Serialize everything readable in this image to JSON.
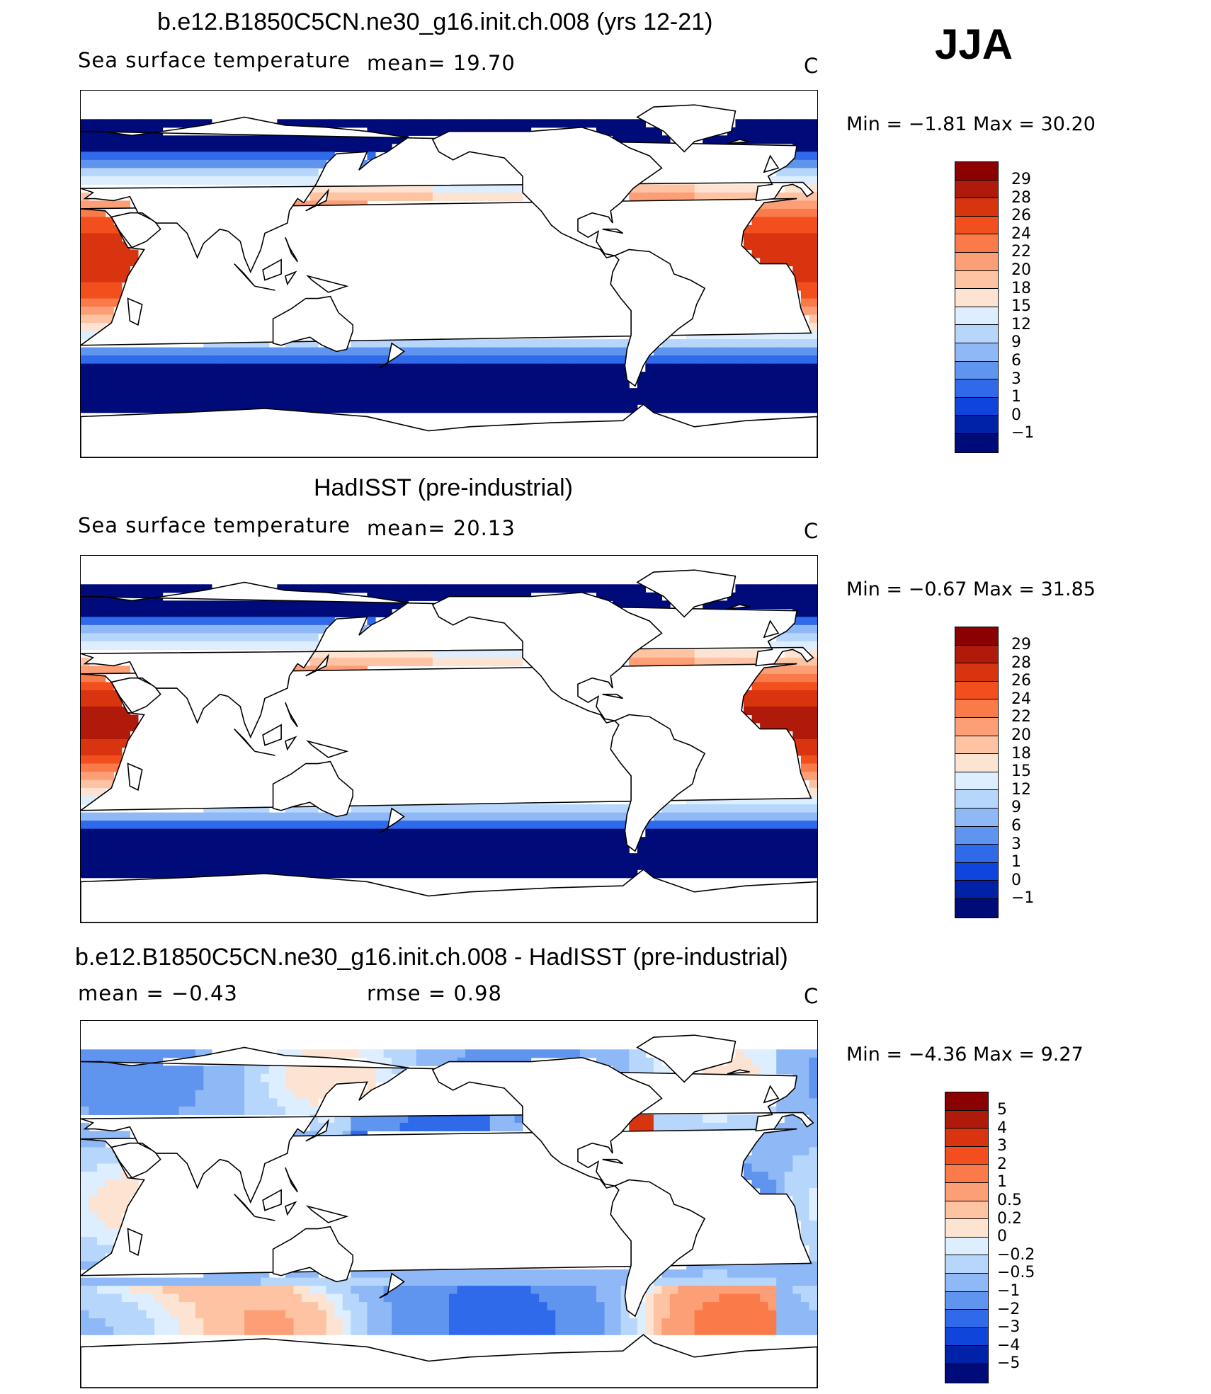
{
  "season": "JJA",
  "panels": [
    {
      "title": "b.e12.B1850C5CN.ne30_g16.init.ch.008 (yrs 12-21)",
      "left_label": "Sea surface temperature",
      "mid_label": "mean=   19.70",
      "units": "C",
      "minmax": "Min  =   −1.81  Max  =   30.20",
      "levels": [
        "29",
        "28",
        "26",
        "24",
        "22",
        "20",
        "18",
        "15",
        "12",
        "9",
        "6",
        "3",
        "1",
        "0",
        "−1"
      ],
      "colors": [
        "#8b0000",
        "#b01a0a",
        "#d8340f",
        "#f24e1e",
        "#fb7a4a",
        "#fc9e76",
        "#fdc3a3",
        "#fde4d2",
        "#dceeff",
        "#b7d6fb",
        "#8fb8f6",
        "#5f94ef",
        "#2f6aea",
        "#0f45dc",
        "#0022a8",
        "#000b7a"
      ],
      "field": "sst_model"
    },
    {
      "title": "HadISST (pre-industrial)",
      "left_label": "Sea surface temperature",
      "mid_label": "mean=   20.13",
      "units": "C",
      "minmax": "Min  =   −0.67  Max  =   31.85",
      "levels": [
        "29",
        "28",
        "26",
        "24",
        "22",
        "20",
        "18",
        "15",
        "12",
        "9",
        "6",
        "3",
        "1",
        "0",
        "−1"
      ],
      "colors": [
        "#8b0000",
        "#b01a0a",
        "#d8340f",
        "#f24e1e",
        "#fb7a4a",
        "#fc9e76",
        "#fdc3a3",
        "#fde4d2",
        "#dceeff",
        "#b7d6fb",
        "#8fb8f6",
        "#5f94ef",
        "#2f6aea",
        "#0f45dc",
        "#0022a8",
        "#000b7a"
      ],
      "field": "sst_obs"
    },
    {
      "title": "b.e12.B1850C5CN.ne30_g16.init.ch.008 - HadISST (pre-industrial)",
      "left_label": "mean  =   −0.43",
      "mid_label": "rmse  =    0.98",
      "units": "C",
      "minmax": "Min  =   −4.36  Max  =     9.27",
      "levels": [
        "5",
        "4",
        "3",
        "2",
        "1",
        "0.5",
        "0.2",
        "0",
        "−0.2",
        "−0.5",
        "−1",
        "−2",
        "−3",
        "−4",
        "−5"
      ],
      "colors": [
        "#8b0000",
        "#b01a0a",
        "#d8340f",
        "#f24e1e",
        "#fb7a4a",
        "#fc9e76",
        "#fdc3a3",
        "#fde4d2",
        "#dceeff",
        "#b7d6fb",
        "#8fb8f6",
        "#5f94ef",
        "#2f6aea",
        "#0f45dc",
        "#0022a8",
        "#000b7a"
      ],
      "field": "diff"
    }
  ]
}
